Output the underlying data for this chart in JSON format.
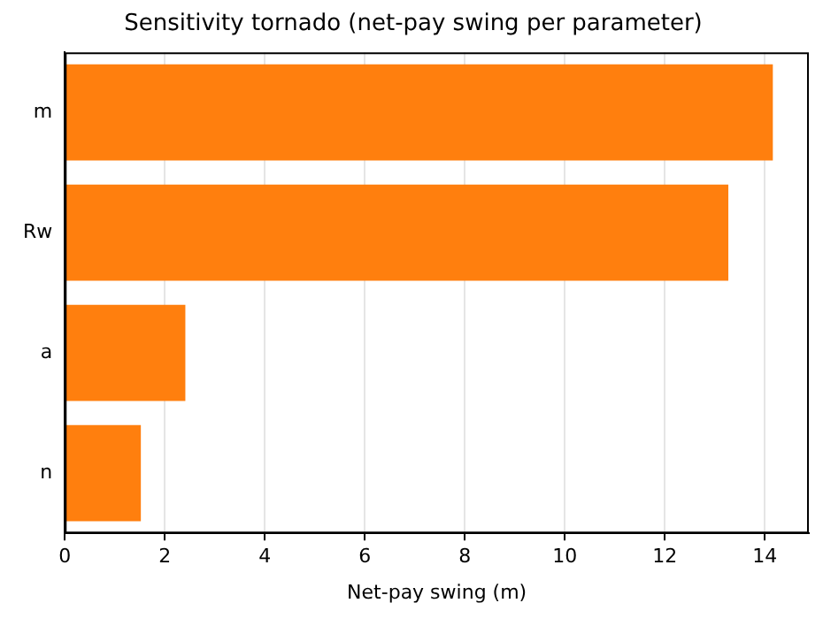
{
  "chart_data": {
    "type": "bar",
    "orientation": "horizontal",
    "title": "Sensitivity tornado (net-pay swing per parameter)",
    "xlabel": "Net-pay swing (m)",
    "categories": [
      "m",
      "Rw",
      "a",
      "n"
    ],
    "values": [
      14.16,
      13.27,
      2.41,
      1.52
    ],
    "color": "#ff7f0e",
    "xlim": [
      0,
      14.88
    ],
    "xticks": [
      0,
      2,
      4,
      6,
      8,
      10,
      12,
      14
    ],
    "grid": "x"
  }
}
